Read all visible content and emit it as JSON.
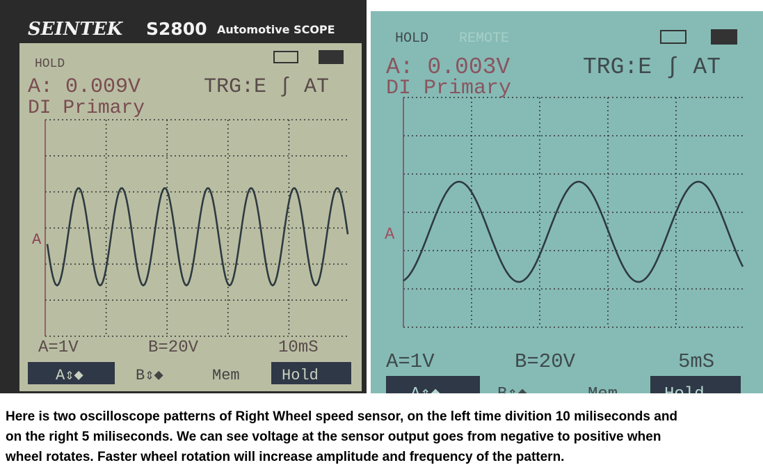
{
  "left_scope": {
    "brand": "SEINTEK",
    "model": "S2800",
    "subtitle": "Automotive SCOPE",
    "status": "HOLD",
    "reading": "A: 0.009V",
    "trigger": "TRG:E ∫ AT",
    "mode": "DI Primary",
    "channel_marker": "A",
    "scale_a": "A=1V",
    "scale_b": "B=20V",
    "timebase": "10mS",
    "softkeys": [
      "A⇕◆",
      "B⇕◆",
      "Mem",
      "Hold"
    ]
  },
  "right_scope": {
    "status": "HOLD",
    "remote": "REMOTE",
    "reading": "A: 0.003V",
    "trigger": "TRG:E ∫ AT",
    "mode": "DI Primary",
    "channel_marker": "A",
    "scale_a": "A=1V",
    "scale_b": "B=20V",
    "timebase": "5mS",
    "softkeys": [
      "A⇕◆",
      "B⇕◆",
      "Mem",
      "Hold"
    ]
  },
  "caption": {
    "lines": [
      "Here is two oscilloscope patterns of Right Wheel speed sensor, on the left time divition 10 miliseconds and",
      "on the right 5 miliseconds. We can see voltage at the sensor output goes from negative to positive when",
      "wheel rotates. Faster wheel rotation will increase amplitude and frequency of the pattern."
    ]
  }
}
